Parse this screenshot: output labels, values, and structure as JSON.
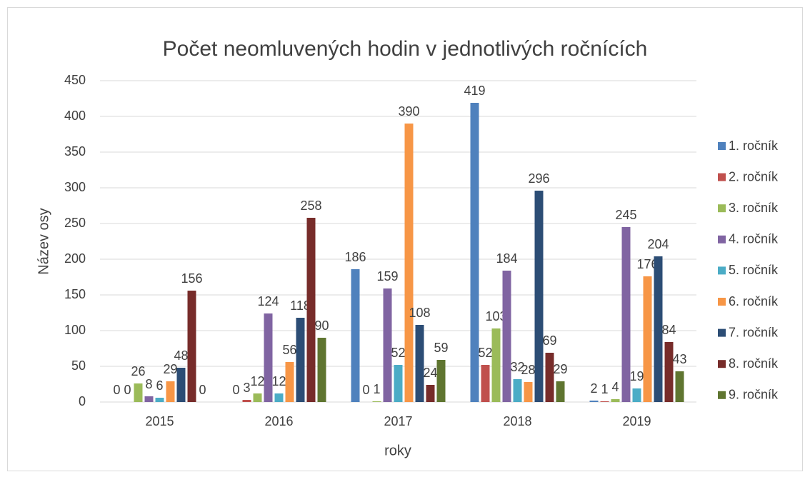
{
  "chart_data": {
    "type": "bar",
    "title": "Počet neomluvených hodin v jednotlivých ročnících",
    "x_label": "roky",
    "y_label": "Název osy",
    "categories": [
      "2015",
      "2016",
      "2017",
      "2018",
      "2019"
    ],
    "series": [
      {
        "name": "1. ročník",
        "color": "#4F81BD",
        "values": [
          0,
          0,
          186,
          419,
          2
        ]
      },
      {
        "name": "2. ročník",
        "color": "#C0504D",
        "values": [
          0,
          3,
          0,
          52,
          1
        ]
      },
      {
        "name": "3. ročník",
        "color": "#9BBB59",
        "values": [
          26,
          12,
          1,
          103,
          4
        ]
      },
      {
        "name": "4. ročník",
        "color": "#8064A2",
        "values": [
          8,
          124,
          159,
          184,
          245
        ]
      },
      {
        "name": "5. ročník",
        "color": "#4BACC6",
        "values": [
          6,
          12,
          52,
          32,
          19
        ]
      },
      {
        "name": "6. ročník",
        "color": "#F79646",
        "values": [
          29,
          56,
          390,
          28,
          176
        ]
      },
      {
        "name": "7. ročník",
        "color": "#2C4D75",
        "values": [
          48,
          118,
          108,
          296,
          204
        ]
      },
      {
        "name": "8. ročník",
        "color": "#772C2A",
        "values": [
          156,
          258,
          24,
          69,
          84
        ]
      },
      {
        "name": "9. ročník",
        "color": "#5F7530",
        "values": [
          0,
          90,
          59,
          29,
          43
        ]
      }
    ],
    "ylim": [
      0,
      450
    ],
    "yticks": [
      0,
      50,
      100,
      150,
      200,
      250,
      300,
      350,
      400,
      450
    ],
    "grid": true,
    "legend": "right"
  }
}
